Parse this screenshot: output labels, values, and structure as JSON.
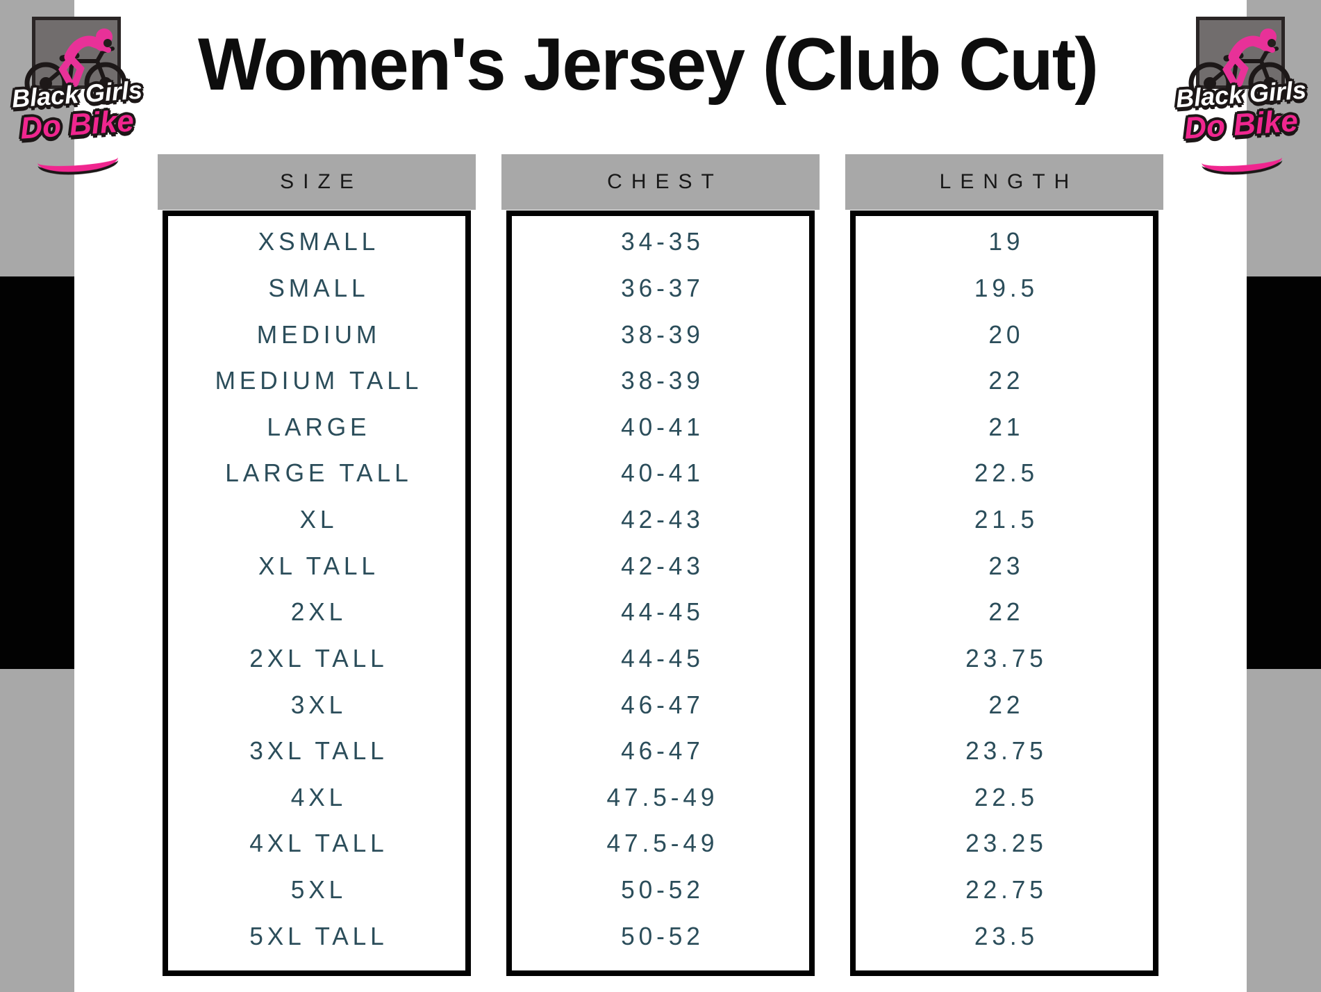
{
  "title": "Women's Jersey (Club Cut)",
  "logo": {
    "line1": "Black Girls",
    "line2": "Do Bike"
  },
  "chart_data": {
    "type": "table",
    "title": "Women's Jersey (Club Cut)",
    "columns": [
      "SIZE",
      "CHEST",
      "LENGTH"
    ],
    "rows": [
      [
        "XSMALL",
        "34-35",
        "19"
      ],
      [
        "SMALL",
        "36-37",
        "19.5"
      ],
      [
        "MEDIUM",
        "38-39",
        "20"
      ],
      [
        "MEDIUM TALL",
        "38-39",
        "22"
      ],
      [
        "LARGE",
        "40-41",
        "21"
      ],
      [
        "LARGE TALL",
        "40-41",
        "22.5"
      ],
      [
        "XL",
        "42-43",
        "21.5"
      ],
      [
        "XL TALL",
        "42-43",
        "23"
      ],
      [
        "2XL",
        "44-45",
        "22"
      ],
      [
        "2XL TALL",
        "44-45",
        "23.75"
      ],
      [
        "3XL",
        "46-47",
        "22"
      ],
      [
        "3XL TALL",
        "46-47",
        "23.75"
      ],
      [
        "4XL",
        "47.5-49",
        "22.5"
      ],
      [
        "4XL TALL",
        "47.5-49",
        "23.25"
      ],
      [
        "5XL",
        "50-52",
        "22.75"
      ],
      [
        "5XL TALL",
        "50-52",
        "23.5"
      ]
    ]
  },
  "colors": {
    "accent_pink": "#f0268f",
    "table_text_teal": "#2b4d5a",
    "bar_gray": "#a8a8a8",
    "bar_black": "#020202",
    "logo_square_gray": "#716d6d",
    "title_black": "#0d0d0d"
  }
}
